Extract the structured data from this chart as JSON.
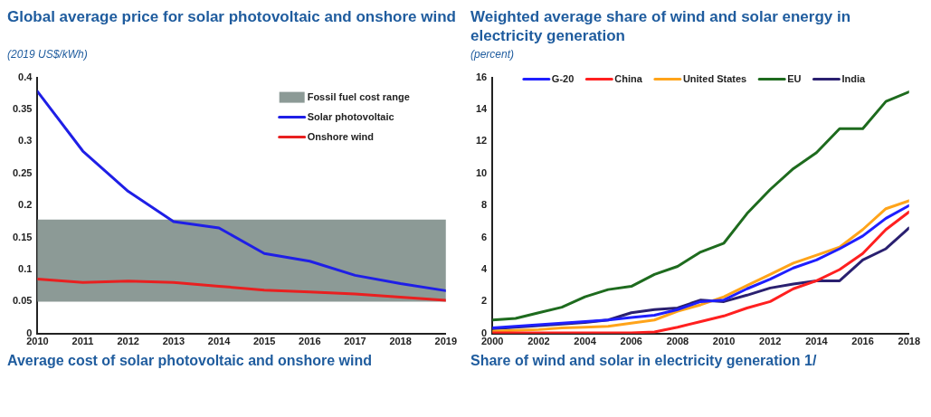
{
  "chart_data": [
    {
      "type": "line",
      "title": "Global average price for solar photovoltaic and onshore wind",
      "subtitle": "(2019 US$/kWh)",
      "annotations": [
        "Average cost of solar photovoltaic and onshore wind"
      ],
      "x": [
        2010,
        2011,
        2012,
        2013,
        2014,
        2015,
        2016,
        2017,
        2018,
        2019
      ],
      "xlim": [
        2010,
        2019
      ],
      "xticks": [
        2010,
        2011,
        2012,
        2013,
        2014,
        2015,
        2016,
        2017,
        2018,
        2019
      ],
      "ylim": [
        0,
        0.4
      ],
      "yticks": [
        0,
        0.05,
        0.1,
        0.15,
        0.2,
        0.25,
        0.3,
        0.35,
        0.4
      ],
      "grid": false,
      "legend": "top right",
      "marker": "none",
      "line_style": "solid",
      "bands": [
        {
          "axis": "y",
          "from": 0.05,
          "to": 0.178,
          "label": "Fossil fuel cost range",
          "color": "#8c9a96"
        }
      ],
      "series": [
        {
          "name": "Solar photovoltaic",
          "color": "#1f1fe6",
          "values": [
            0.378,
            0.285,
            0.222,
            0.175,
            0.165,
            0.125,
            0.113,
            0.091,
            0.078,
            0.067
          ]
        },
        {
          "name": "Onshore wind",
          "color": "#e82020",
          "values": [
            0.085,
            0.08,
            0.082,
            0.08,
            0.074,
            0.068,
            0.065,
            0.062,
            0.057,
            0.052
          ]
        }
      ]
    },
    {
      "type": "line",
      "title": "Weighted average share of wind and solar energy in electricity generation",
      "subtitle": "(percent)",
      "annotations": [
        "Share of wind and solar in electricity generation 1/"
      ],
      "x": [
        2000,
        2001,
        2002,
        2003,
        2004,
        2005,
        2006,
        2007,
        2008,
        2009,
        2010,
        2011,
        2012,
        2013,
        2014,
        2015,
        2016,
        2017,
        2018
      ],
      "xlim": [
        2000,
        2018
      ],
      "xticks": [
        2000,
        2002,
        2004,
        2006,
        2008,
        2010,
        2012,
        2014,
        2016,
        2018
      ],
      "ylim": [
        0,
        16
      ],
      "yticks": [
        0,
        2,
        4,
        6,
        8,
        10,
        12,
        14,
        16
      ],
      "grid": false,
      "legend": "top",
      "marker": "none",
      "line_style": "solid",
      "series": [
        {
          "name": "G-20",
          "color": "#1f1fff",
          "values": [
            0.35,
            0.45,
            0.55,
            0.65,
            0.75,
            0.85,
            1.0,
            1.15,
            1.5,
            2.0,
            2.1,
            2.8,
            3.4,
            4.1,
            4.6,
            5.3,
            6.1,
            7.2,
            8.0
          ]
        },
        {
          "name": "China",
          "color": "#ff2020",
          "values": [
            0.05,
            0.05,
            0.05,
            0.05,
            0.05,
            0.05,
            0.05,
            0.1,
            0.4,
            0.75,
            1.1,
            1.6,
            2.0,
            2.8,
            3.3,
            4.0,
            5.0,
            6.5,
            7.6
          ]
        },
        {
          "name": "United States",
          "color": "#ffa41a",
          "values": [
            0.15,
            0.2,
            0.25,
            0.35,
            0.4,
            0.45,
            0.65,
            0.85,
            1.4,
            1.8,
            2.3,
            3.0,
            3.7,
            4.4,
            4.9,
            5.4,
            6.5,
            7.8,
            8.3
          ]
        },
        {
          "name": "EU",
          "color": "#1e6b1e",
          "values": [
            0.85,
            0.95,
            1.3,
            1.65,
            2.3,
            2.75,
            2.95,
            3.7,
            4.2,
            5.1,
            5.65,
            7.5,
            9.0,
            10.3,
            11.3,
            12.8,
            12.8,
            14.5,
            15.1
          ]
        },
        {
          "name": "India",
          "color": "#2a2070",
          "values": [
            0.3,
            0.4,
            0.5,
            0.6,
            0.7,
            0.85,
            1.3,
            1.5,
            1.6,
            2.1,
            2.0,
            2.4,
            2.85,
            3.1,
            3.3,
            3.3,
            4.6,
            5.3,
            6.6
          ]
        }
      ]
    }
  ]
}
